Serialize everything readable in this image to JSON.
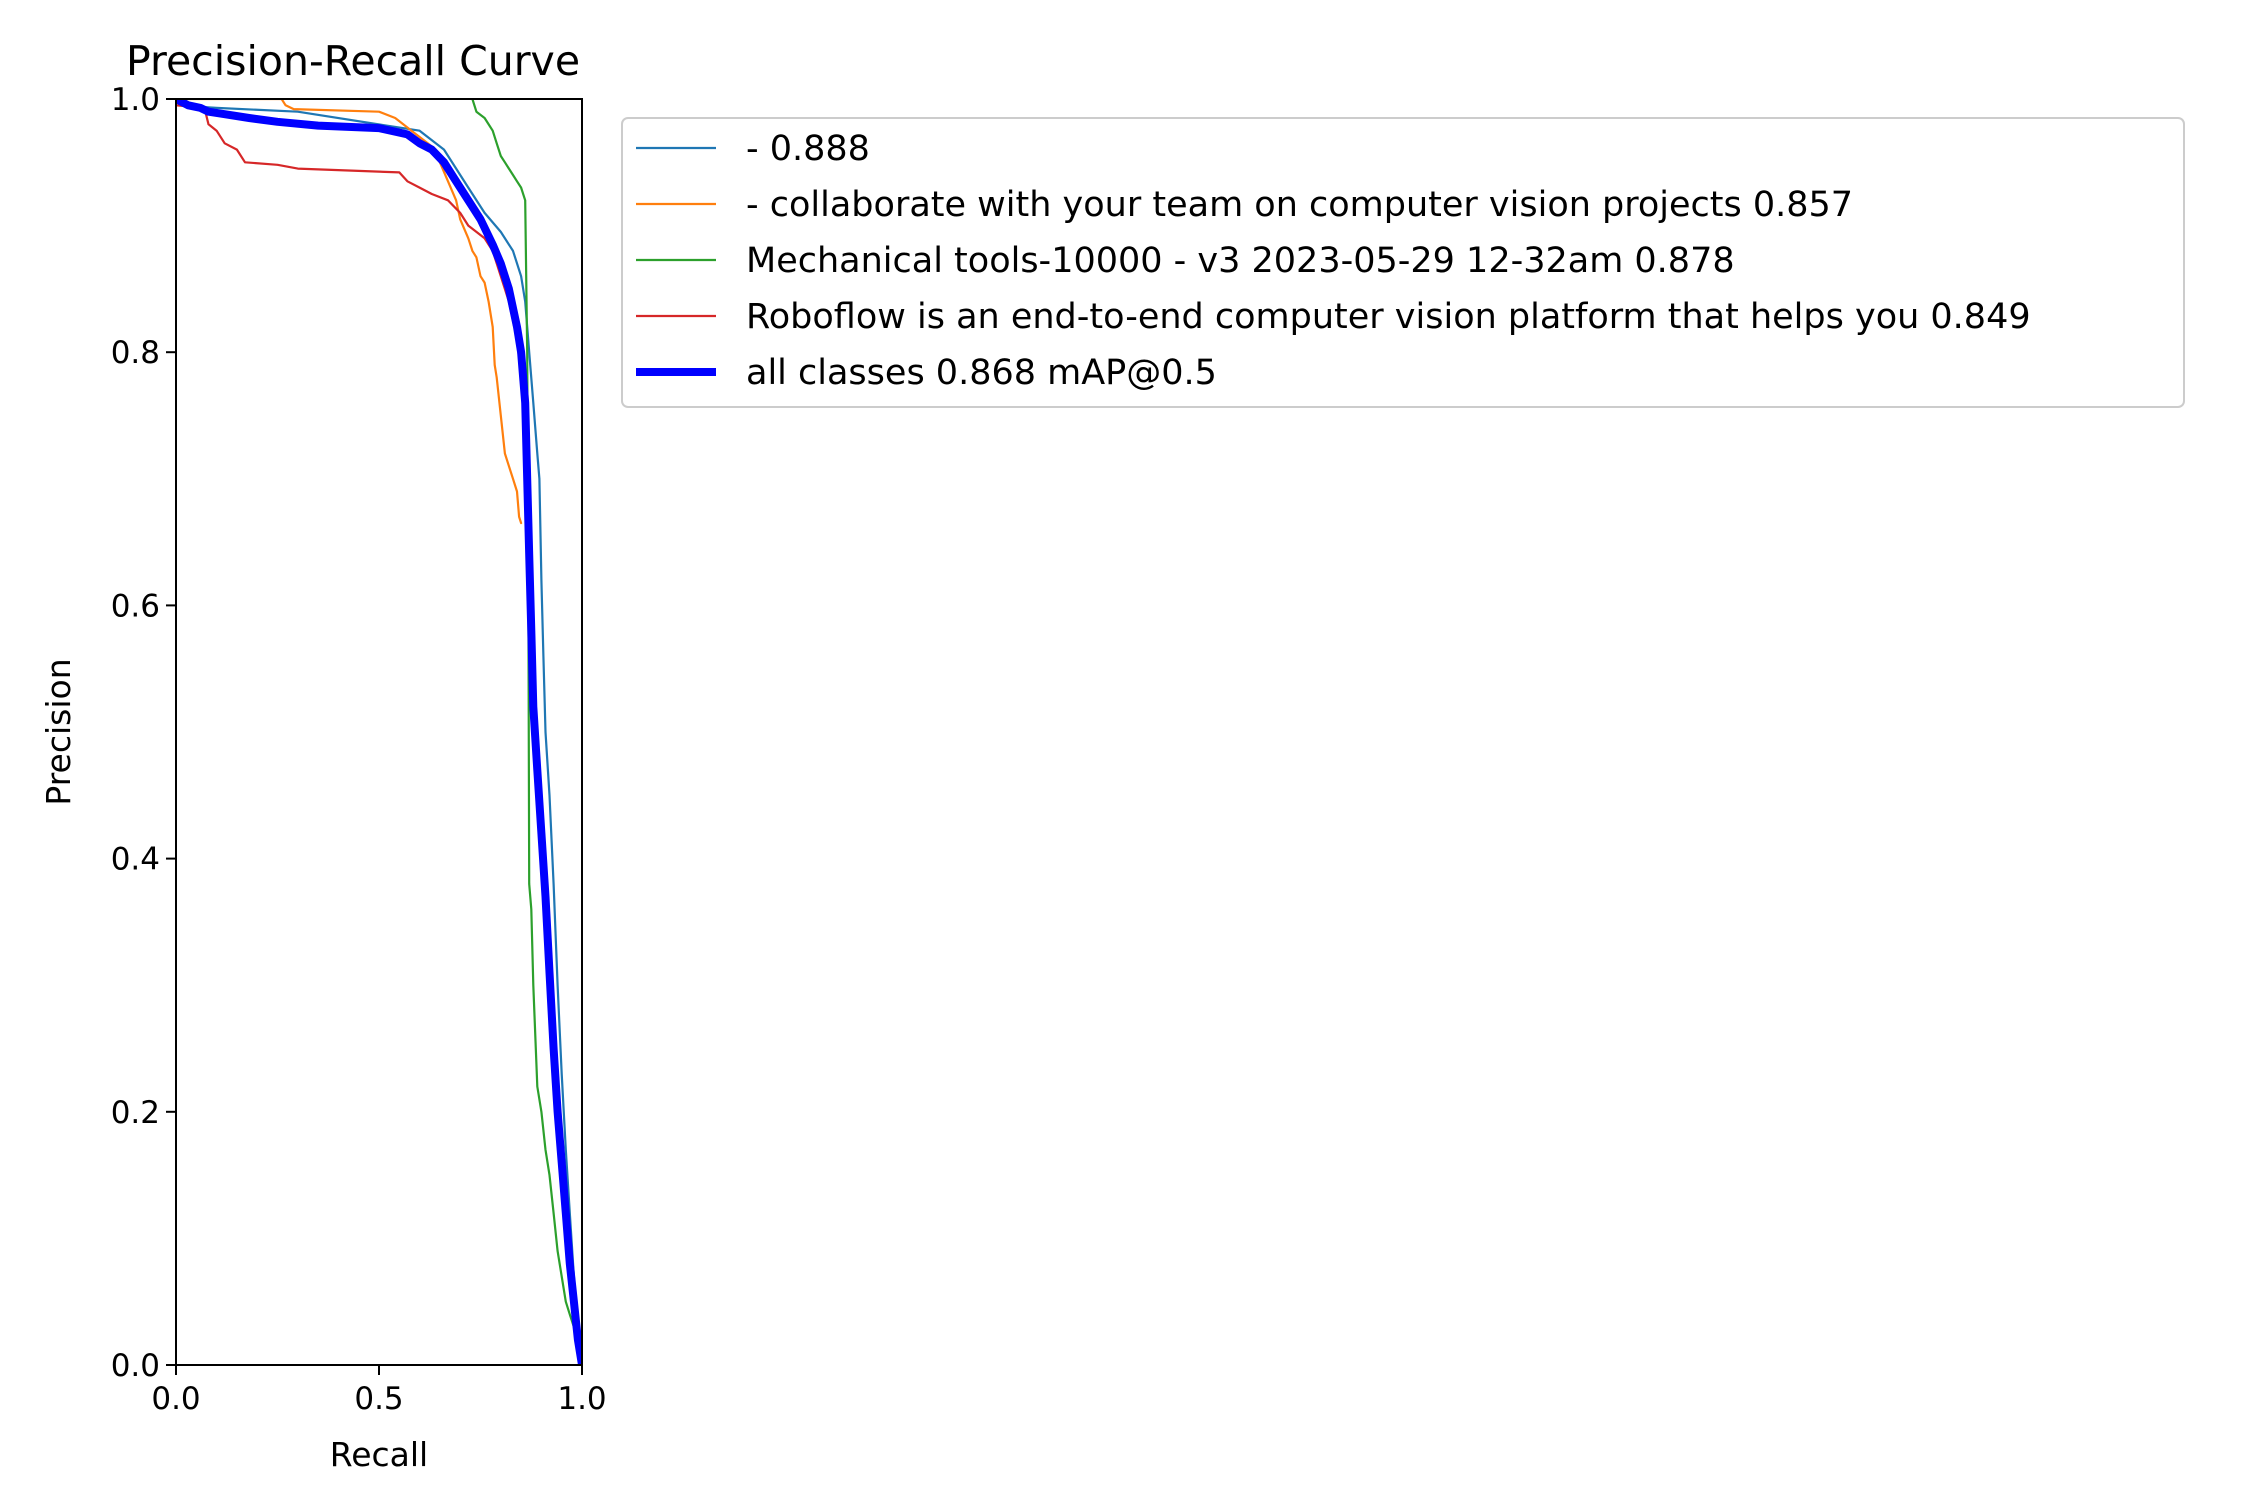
{
  "chart_data": {
    "type": "line",
    "title": "Precision-Recall Curve",
    "xlabel": "Recall",
    "ylabel": "Precision",
    "xlim": [
      0,
      1
    ],
    "ylim": [
      0,
      1
    ],
    "grid": false,
    "legend_position": "outside-right-top",
    "x_ticks": [
      "0.0",
      "0.5",
      "1.0"
    ],
    "y_ticks": [
      "0.0",
      "0.2",
      "0.4",
      "0.6",
      "0.8",
      "1.0"
    ],
    "series": [
      {
        "name": "- 0.888",
        "color": "#1f77b4",
        "width": "thin",
        "points": [
          [
            0,
            1.0
          ],
          [
            0.02,
            0.997
          ],
          [
            0.05,
            0.994
          ],
          [
            0.1,
            0.993
          ],
          [
            0.3,
            0.99
          ],
          [
            0.6,
            0.975
          ],
          [
            0.66,
            0.96
          ],
          [
            0.72,
            0.93
          ],
          [
            0.76,
            0.91
          ],
          [
            0.8,
            0.895
          ],
          [
            0.83,
            0.88
          ],
          [
            0.85,
            0.86
          ],
          [
            0.86,
            0.84
          ],
          [
            0.87,
            0.8
          ],
          [
            0.88,
            0.76
          ],
          [
            0.89,
            0.72
          ],
          [
            0.895,
            0.7
          ],
          [
            0.9,
            0.62
          ],
          [
            0.905,
            0.56
          ],
          [
            0.91,
            0.5
          ],
          [
            0.92,
            0.45
          ],
          [
            0.93,
            0.38
          ],
          [
            0.94,
            0.3
          ],
          [
            0.95,
            0.23
          ],
          [
            0.96,
            0.17
          ],
          [
            0.97,
            0.12
          ],
          [
            0.98,
            0.07
          ],
          [
            0.99,
            0.03
          ],
          [
            1.0,
            0.0
          ]
        ]
      },
      {
        "name": "- collaborate with your team on computer vision projects 0.857",
        "color": "#ff7f0e",
        "width": "thin",
        "points": [
          [
            0,
            1.0
          ],
          [
            0.26,
            1.0
          ],
          [
            0.27,
            0.995
          ],
          [
            0.29,
            0.992
          ],
          [
            0.5,
            0.99
          ],
          [
            0.54,
            0.985
          ],
          [
            0.58,
            0.975
          ],
          [
            0.62,
            0.965
          ],
          [
            0.64,
            0.96
          ],
          [
            0.65,
            0.95
          ],
          [
            0.67,
            0.935
          ],
          [
            0.69,
            0.92
          ],
          [
            0.7,
            0.905
          ],
          [
            0.72,
            0.89
          ],
          [
            0.73,
            0.88
          ],
          [
            0.74,
            0.875
          ],
          [
            0.75,
            0.86
          ],
          [
            0.76,
            0.855
          ],
          [
            0.77,
            0.84
          ],
          [
            0.78,
            0.82
          ],
          [
            0.785,
            0.79
          ],
          [
            0.79,
            0.78
          ],
          [
            0.8,
            0.75
          ],
          [
            0.81,
            0.72
          ],
          [
            0.82,
            0.71
          ],
          [
            0.83,
            0.7
          ],
          [
            0.84,
            0.69
          ],
          [
            0.845,
            0.67
          ],
          [
            0.85,
            0.665
          ]
        ]
      },
      {
        "name": "Mechanical tools-10000 - v3 2023-05-29 12-32am 0.878",
        "color": "#2ca02c",
        "width": "thin",
        "points": [
          [
            0.73,
            1.0
          ],
          [
            0.74,
            0.99
          ],
          [
            0.76,
            0.985
          ],
          [
            0.78,
            0.975
          ],
          [
            0.79,
            0.965
          ],
          [
            0.8,
            0.955
          ],
          [
            0.81,
            0.95
          ],
          [
            0.82,
            0.945
          ],
          [
            0.83,
            0.94
          ],
          [
            0.84,
            0.935
          ],
          [
            0.85,
            0.93
          ],
          [
            0.86,
            0.92
          ],
          [
            0.865,
            0.8
          ],
          [
            0.868,
            0.6
          ],
          [
            0.87,
            0.38
          ],
          [
            0.875,
            0.36
          ],
          [
            0.88,
            0.3
          ],
          [
            0.885,
            0.26
          ],
          [
            0.89,
            0.22
          ],
          [
            0.9,
            0.2
          ],
          [
            0.91,
            0.17
          ],
          [
            0.92,
            0.15
          ],
          [
            0.93,
            0.12
          ],
          [
            0.94,
            0.09
          ],
          [
            0.95,
            0.07
          ],
          [
            0.96,
            0.05
          ],
          [
            0.97,
            0.04
          ],
          [
            0.98,
            0.03
          ],
          [
            0.99,
            0.02
          ],
          [
            1.0,
            0.0
          ]
        ]
      },
      {
        "name": "Roboflow is an end-to-end computer vision platform that helps you 0.849",
        "color": "#d62728",
        "width": "thin",
        "points": [
          [
            0,
            0.995
          ],
          [
            0.07,
            0.993
          ],
          [
            0.08,
            0.98
          ],
          [
            0.1,
            0.975
          ],
          [
            0.12,
            0.965
          ],
          [
            0.15,
            0.96
          ],
          [
            0.17,
            0.95
          ],
          [
            0.25,
            0.948
          ],
          [
            0.3,
            0.945
          ],
          [
            0.55,
            0.942
          ],
          [
            0.57,
            0.935
          ],
          [
            0.6,
            0.93
          ],
          [
            0.63,
            0.925
          ],
          [
            0.67,
            0.92
          ],
          [
            0.7,
            0.91
          ],
          [
            0.72,
            0.9
          ],
          [
            0.74,
            0.895
          ],
          [
            0.76,
            0.89
          ],
          [
            0.78,
            0.88
          ],
          [
            0.8,
            0.86
          ],
          [
            0.82,
            0.84
          ],
          [
            0.84,
            0.81
          ],
          [
            0.85,
            0.78
          ],
          [
            0.86,
            0.74
          ],
          [
            0.865,
            0.66
          ],
          [
            0.87,
            0.62
          ],
          [
            0.88,
            0.55
          ],
          [
            0.89,
            0.5
          ],
          [
            0.9,
            0.45
          ]
        ]
      },
      {
        "name": "all classes 0.868 mAP@0.5",
        "color": "#0000ff",
        "width": "thick",
        "points": [
          [
            0,
            1.0
          ],
          [
            0.03,
            0.995
          ],
          [
            0.06,
            0.993
          ],
          [
            0.08,
            0.99
          ],
          [
            0.12,
            0.988
          ],
          [
            0.18,
            0.985
          ],
          [
            0.25,
            0.982
          ],
          [
            0.35,
            0.979
          ],
          [
            0.5,
            0.977
          ],
          [
            0.57,
            0.972
          ],
          [
            0.6,
            0.965
          ],
          [
            0.63,
            0.96
          ],
          [
            0.66,
            0.95
          ],
          [
            0.69,
            0.935
          ],
          [
            0.72,
            0.92
          ],
          [
            0.75,
            0.905
          ],
          [
            0.78,
            0.885
          ],
          [
            0.8,
            0.87
          ],
          [
            0.82,
            0.85
          ],
          [
            0.84,
            0.82
          ],
          [
            0.85,
            0.8
          ],
          [
            0.86,
            0.76
          ],
          [
            0.865,
            0.7
          ],
          [
            0.87,
            0.64
          ],
          [
            0.875,
            0.58
          ],
          [
            0.88,
            0.52
          ],
          [
            0.89,
            0.47
          ],
          [
            0.9,
            0.42
          ],
          [
            0.91,
            0.37
          ],
          [
            0.92,
            0.31
          ],
          [
            0.93,
            0.25
          ],
          [
            0.94,
            0.2
          ],
          [
            0.95,
            0.16
          ],
          [
            0.96,
            0.12
          ],
          [
            0.97,
            0.08
          ],
          [
            0.98,
            0.05
          ],
          [
            0.99,
            0.02
          ],
          [
            1.0,
            0.0
          ]
        ]
      }
    ]
  }
}
